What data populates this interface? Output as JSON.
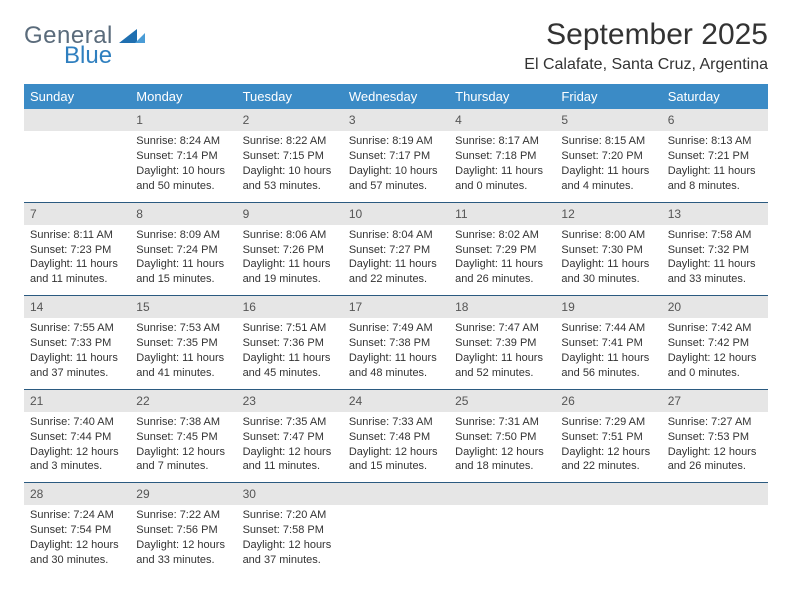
{
  "logo": {
    "word1": "General",
    "word2": "Blue"
  },
  "title": "September 2025",
  "subtitle": "El Calafate, Santa Cruz, Argentina",
  "colors": {
    "header_bg": "#3b8bc6",
    "header_text": "#ffffff",
    "daynum_bg": "#e6e6e6",
    "row_divider": "#2b5a80",
    "logo_gray": "#5a6b7b",
    "logo_blue": "#2f7fbf"
  },
  "day_headers": [
    "Sunday",
    "Monday",
    "Tuesday",
    "Wednesday",
    "Thursday",
    "Friday",
    "Saturday"
  ],
  "weeks": [
    [
      null,
      {
        "n": "1",
        "sr": "Sunrise: 8:24 AM",
        "ss": "Sunset: 7:14 PM",
        "d1": "Daylight: 10 hours",
        "d2": "and 50 minutes."
      },
      {
        "n": "2",
        "sr": "Sunrise: 8:22 AM",
        "ss": "Sunset: 7:15 PM",
        "d1": "Daylight: 10 hours",
        "d2": "and 53 minutes."
      },
      {
        "n": "3",
        "sr": "Sunrise: 8:19 AM",
        "ss": "Sunset: 7:17 PM",
        "d1": "Daylight: 10 hours",
        "d2": "and 57 minutes."
      },
      {
        "n": "4",
        "sr": "Sunrise: 8:17 AM",
        "ss": "Sunset: 7:18 PM",
        "d1": "Daylight: 11 hours",
        "d2": "and 0 minutes."
      },
      {
        "n": "5",
        "sr": "Sunrise: 8:15 AM",
        "ss": "Sunset: 7:20 PM",
        "d1": "Daylight: 11 hours",
        "d2": "and 4 minutes."
      },
      {
        "n": "6",
        "sr": "Sunrise: 8:13 AM",
        "ss": "Sunset: 7:21 PM",
        "d1": "Daylight: 11 hours",
        "d2": "and 8 minutes."
      }
    ],
    [
      {
        "n": "7",
        "sr": "Sunrise: 8:11 AM",
        "ss": "Sunset: 7:23 PM",
        "d1": "Daylight: 11 hours",
        "d2": "and 11 minutes."
      },
      {
        "n": "8",
        "sr": "Sunrise: 8:09 AM",
        "ss": "Sunset: 7:24 PM",
        "d1": "Daylight: 11 hours",
        "d2": "and 15 minutes."
      },
      {
        "n": "9",
        "sr": "Sunrise: 8:06 AM",
        "ss": "Sunset: 7:26 PM",
        "d1": "Daylight: 11 hours",
        "d2": "and 19 minutes."
      },
      {
        "n": "10",
        "sr": "Sunrise: 8:04 AM",
        "ss": "Sunset: 7:27 PM",
        "d1": "Daylight: 11 hours",
        "d2": "and 22 minutes."
      },
      {
        "n": "11",
        "sr": "Sunrise: 8:02 AM",
        "ss": "Sunset: 7:29 PM",
        "d1": "Daylight: 11 hours",
        "d2": "and 26 minutes."
      },
      {
        "n": "12",
        "sr": "Sunrise: 8:00 AM",
        "ss": "Sunset: 7:30 PM",
        "d1": "Daylight: 11 hours",
        "d2": "and 30 minutes."
      },
      {
        "n": "13",
        "sr": "Sunrise: 7:58 AM",
        "ss": "Sunset: 7:32 PM",
        "d1": "Daylight: 11 hours",
        "d2": "and 33 minutes."
      }
    ],
    [
      {
        "n": "14",
        "sr": "Sunrise: 7:55 AM",
        "ss": "Sunset: 7:33 PM",
        "d1": "Daylight: 11 hours",
        "d2": "and 37 minutes."
      },
      {
        "n": "15",
        "sr": "Sunrise: 7:53 AM",
        "ss": "Sunset: 7:35 PM",
        "d1": "Daylight: 11 hours",
        "d2": "and 41 minutes."
      },
      {
        "n": "16",
        "sr": "Sunrise: 7:51 AM",
        "ss": "Sunset: 7:36 PM",
        "d1": "Daylight: 11 hours",
        "d2": "and 45 minutes."
      },
      {
        "n": "17",
        "sr": "Sunrise: 7:49 AM",
        "ss": "Sunset: 7:38 PM",
        "d1": "Daylight: 11 hours",
        "d2": "and 48 minutes."
      },
      {
        "n": "18",
        "sr": "Sunrise: 7:47 AM",
        "ss": "Sunset: 7:39 PM",
        "d1": "Daylight: 11 hours",
        "d2": "and 52 minutes."
      },
      {
        "n": "19",
        "sr": "Sunrise: 7:44 AM",
        "ss": "Sunset: 7:41 PM",
        "d1": "Daylight: 11 hours",
        "d2": "and 56 minutes."
      },
      {
        "n": "20",
        "sr": "Sunrise: 7:42 AM",
        "ss": "Sunset: 7:42 PM",
        "d1": "Daylight: 12 hours",
        "d2": "and 0 minutes."
      }
    ],
    [
      {
        "n": "21",
        "sr": "Sunrise: 7:40 AM",
        "ss": "Sunset: 7:44 PM",
        "d1": "Daylight: 12 hours",
        "d2": "and 3 minutes."
      },
      {
        "n": "22",
        "sr": "Sunrise: 7:38 AM",
        "ss": "Sunset: 7:45 PM",
        "d1": "Daylight: 12 hours",
        "d2": "and 7 minutes."
      },
      {
        "n": "23",
        "sr": "Sunrise: 7:35 AM",
        "ss": "Sunset: 7:47 PM",
        "d1": "Daylight: 12 hours",
        "d2": "and 11 minutes."
      },
      {
        "n": "24",
        "sr": "Sunrise: 7:33 AM",
        "ss": "Sunset: 7:48 PM",
        "d1": "Daylight: 12 hours",
        "d2": "and 15 minutes."
      },
      {
        "n": "25",
        "sr": "Sunrise: 7:31 AM",
        "ss": "Sunset: 7:50 PM",
        "d1": "Daylight: 12 hours",
        "d2": "and 18 minutes."
      },
      {
        "n": "26",
        "sr": "Sunrise: 7:29 AM",
        "ss": "Sunset: 7:51 PM",
        "d1": "Daylight: 12 hours",
        "d2": "and 22 minutes."
      },
      {
        "n": "27",
        "sr": "Sunrise: 7:27 AM",
        "ss": "Sunset: 7:53 PM",
        "d1": "Daylight: 12 hours",
        "d2": "and 26 minutes."
      }
    ],
    [
      {
        "n": "28",
        "sr": "Sunrise: 7:24 AM",
        "ss": "Sunset: 7:54 PM",
        "d1": "Daylight: 12 hours",
        "d2": "and 30 minutes."
      },
      {
        "n": "29",
        "sr": "Sunrise: 7:22 AM",
        "ss": "Sunset: 7:56 PM",
        "d1": "Daylight: 12 hours",
        "d2": "and 33 minutes."
      },
      {
        "n": "30",
        "sr": "Sunrise: 7:20 AM",
        "ss": "Sunset: 7:58 PM",
        "d1": "Daylight: 12 hours",
        "d2": "and 37 minutes."
      },
      null,
      null,
      null,
      null
    ]
  ]
}
